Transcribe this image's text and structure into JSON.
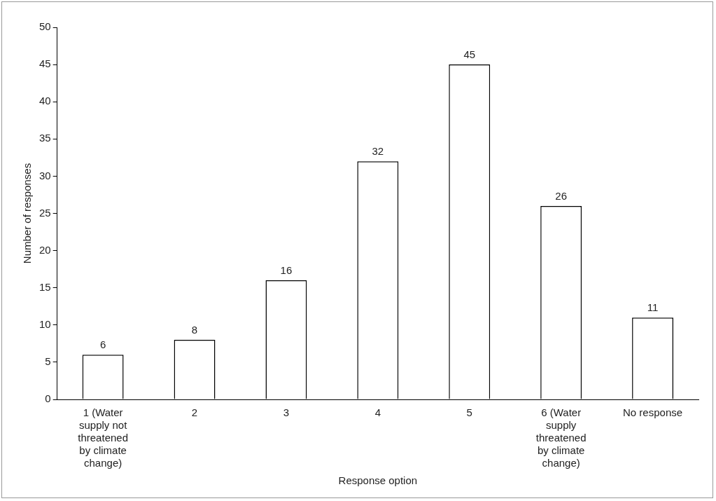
{
  "chart_data": {
    "type": "bar",
    "xlabel": "Response option",
    "ylabel": "Number of responses",
    "categories": [
      "1 (Water supply not threatened by climate change)",
      "2",
      "3",
      "4",
      "5",
      "6 (Water supply threatened by climate change)",
      "No response"
    ],
    "values": [
      6,
      8,
      16,
      32,
      45,
      26,
      11
    ],
    "color": "#ffffff",
    "ylim": [
      0,
      50
    ],
    "yticks": [
      0,
      5,
      10,
      15,
      20,
      25,
      30,
      35,
      40,
      45,
      50
    ],
    "grid": false,
    "legend": false,
    "data_labels": true
  }
}
